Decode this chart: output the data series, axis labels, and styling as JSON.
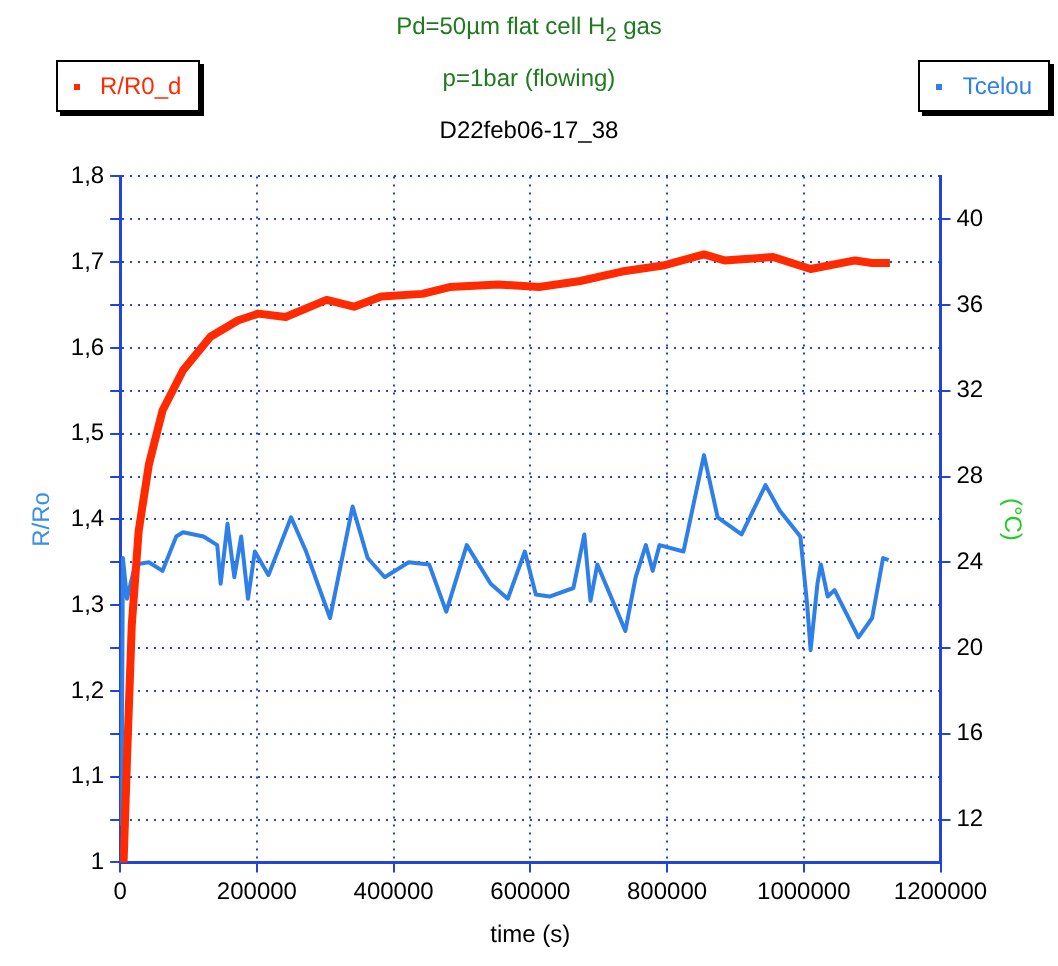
{
  "chart_data": {
    "type": "line",
    "title": "Pd=50µm flat cell H$_{2}$ gas",
    "subtitle": "p=1bar (flowing)",
    "annotations": [
      "D22feb06-17_38"
    ],
    "xlabel": "time (s)",
    "ylabel": "R/Ro",
    "y2label": "(°C)",
    "xlim": [
      0,
      1200000
    ],
    "xticks": [
      0,
      200000,
      400000,
      600000,
      800000,
      1000000,
      1200000
    ],
    "ylim": [
      1,
      1.8
    ],
    "yticks": [
      1,
      {
        "value": 1.05,
        "label": null
      },
      {
        "value": 1.1,
        "label": "1,1"
      },
      {
        "value": 1.15,
        "label": null
      },
      {
        "value": 1.2,
        "label": "1,2"
      },
      {
        "value": 1.25,
        "label": null
      },
      {
        "value": 1.3,
        "label": "1,3"
      },
      {
        "value": 1.35,
        "label": null
      },
      {
        "value": 1.4,
        "label": "1,4"
      },
      {
        "value": 1.45,
        "label": null
      },
      {
        "value": 1.5,
        "label": "1,5"
      },
      {
        "value": 1.55,
        "label": null
      },
      {
        "value": 1.6,
        "label": "1,6"
      },
      {
        "value": 1.65,
        "label": null
      },
      {
        "value": 1.7,
        "label": "1,7"
      },
      {
        "value": 1.75,
        "label": null
      },
      {
        "value": 1.8,
        "label": "1,8"
      }
    ],
    "y2lim": [
      10,
      42
    ],
    "y2ticks": [
      12,
      16,
      20,
      24,
      28,
      32,
      36,
      40
    ],
    "grid": true,
    "legend": "top",
    "marker": "none",
    "series": [
      {
        "name": "R/R0_d",
        "color": "#ff2a00",
        "x": [
          0,
          5000,
          10000,
          17000,
          27000,
          42000,
          62000,
          92000,
          132000,
          172000,
          202000,
          242000,
          302000,
          342000,
          382000,
          442000,
          482000,
          553000,
          613000,
          673000,
          734000,
          794000,
          854000,
          884000,
          955000,
          1010000,
          1075000,
          1100000,
          1126000
        ],
        "values": [
          1.0,
          1.0,
          1.12,
          1.277,
          1.386,
          1.464,
          1.527,
          1.574,
          1.613,
          1.632,
          1.64,
          1.636,
          1.656,
          1.648,
          1.66,
          1.663,
          1.671,
          1.674,
          1.671,
          1.678,
          1.689,
          1.696,
          1.709,
          1.702,
          1.706,
          1.692,
          1.702,
          1.699,
          1.699
        ]
      },
      {
        "name": "Tcelou",
        "color": "#2f7fe8",
        "axis": "y2",
        "x": [
          2000,
          4000,
          10000,
          22000,
          42000,
          62000,
          82000,
          92000,
          122000,
          142000,
          147000,
          157000,
          167000,
          177000,
          187000,
          197000,
          217000,
          250000,
          272000,
          307000,
          340000,
          362000,
          387000,
          422000,
          452000,
          477000,
          507000,
          542000,
          567000,
          592000,
          608000,
          628000,
          663000,
          679000,
          688000,
          698000,
          739000,
          754000,
          769000,
          779000,
          789000,
          824000,
          854000,
          874000,
          909000,
          944000,
          965000,
          995000,
          1005000,
          1010000,
          1020000,
          1025000,
          1035000,
          1045000,
          1080000,
          1100000,
          1116000,
          1124000
        ],
        "values": [
          11.7,
          24.2,
          22.3,
          23.9,
          24.0,
          23.6,
          25.2,
          25.4,
          25.2,
          24.8,
          23.0,
          25.8,
          23.3,
          25.2,
          22.3,
          24.5,
          23.4,
          26.1,
          24.5,
          21.4,
          26.6,
          24.2,
          23.3,
          24.0,
          23.9,
          21.7,
          24.8,
          23.0,
          22.3,
          24.5,
          22.5,
          22.4,
          22.8,
          25.3,
          22.2,
          23.9,
          20.8,
          23.3,
          24.8,
          23.6,
          24.8,
          24.5,
          29.0,
          26.1,
          25.3,
          27.6,
          26.4,
          25.2,
          22.0,
          19.9,
          23.0,
          23.9,
          22.4,
          22.7,
          20.5,
          21.4,
          24.2,
          24.1
        ]
      }
    ]
  }
}
